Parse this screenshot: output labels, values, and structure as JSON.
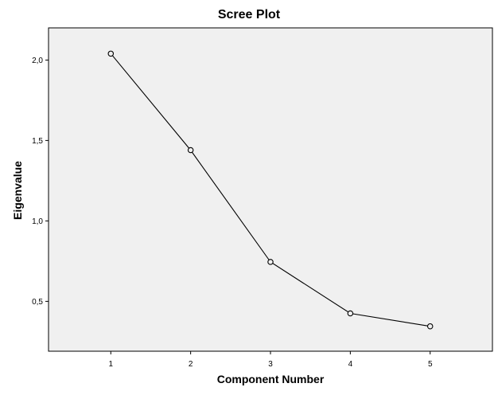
{
  "chart_data": {
    "type": "line",
    "title": "Scree Plot",
    "xlabel": "Component Number",
    "ylabel": "Eigenvalue",
    "x": [
      1,
      2,
      3,
      4,
      5
    ],
    "x_ticks": [
      "1",
      "2",
      "3",
      "4",
      "5"
    ],
    "values": [
      2.04,
      1.44,
      0.745,
      0.425,
      0.345
    ],
    "y_ticks": [
      {
        "value": 0.5,
        "label": "0,5"
      },
      {
        "value": 1.0,
        "label": "1,0"
      },
      {
        "value": 1.5,
        "label": "1,5"
      },
      {
        "value": 2.0,
        "label": "2,0"
      }
    ],
    "xlim": [
      0.22,
      5.78
    ],
    "ylim": [
      0.19,
      2.2
    ],
    "grid": false,
    "marker": "hollow-circle",
    "colors": {
      "plot_background": "#f0f0f0",
      "line": "#000000",
      "frame": "#000000",
      "page_background": "#ffffff"
    }
  }
}
